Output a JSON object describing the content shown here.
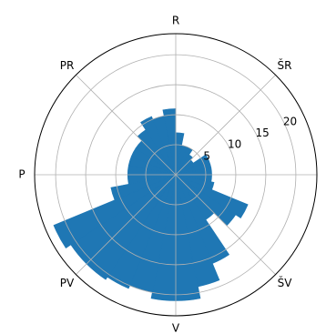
{
  "chart_data": {
    "type": "polar-bar",
    "theta_zero": "top",
    "theta_direction": "clockwise",
    "direction_labels": [
      "R",
      "ŠR",
      "",
      "ŠV",
      "V",
      "PV",
      "P",
      "PR"
    ],
    "r_ticks": [
      5,
      10,
      15,
      20
    ],
    "r_tick_labels": [
      "5",
      "10",
      "15",
      "20"
    ],
    "r_max": 23.5,
    "grid": true,
    "bar_color": "#1f77b4",
    "bins": [
      {
        "start_deg": 0,
        "end_deg": 11.25,
        "value": 7
      },
      {
        "start_deg": 11.25,
        "end_deg": 22.5,
        "value": 5
      },
      {
        "start_deg": 22.5,
        "end_deg": 33.75,
        "value": 5
      },
      {
        "start_deg": 33.75,
        "end_deg": 45,
        "value": 4
      },
      {
        "start_deg": 45,
        "end_deg": 56.25,
        "value": 3.5
      },
      {
        "start_deg": 56.25,
        "end_deg": 67.5,
        "value": 6
      },
      {
        "start_deg": 67.5,
        "end_deg": 78.75,
        "value": 6
      },
      {
        "start_deg": 78.75,
        "end_deg": 90,
        "value": 6
      },
      {
        "start_deg": 90,
        "end_deg": 101.25,
        "value": 6
      },
      {
        "start_deg": 101.25,
        "end_deg": 112.5,
        "value": 6.5
      },
      {
        "start_deg": 112.5,
        "end_deg": 123.75,
        "value": 13
      },
      {
        "start_deg": 123.75,
        "end_deg": 135,
        "value": 12
      },
      {
        "start_deg": 135,
        "end_deg": 146.25,
        "value": 9
      },
      {
        "start_deg": 146.25,
        "end_deg": 157.5,
        "value": 16
      },
      {
        "start_deg": 157.5,
        "end_deg": 168.75,
        "value": 19
      },
      {
        "start_deg": 168.75,
        "end_deg": 180,
        "value": 21
      },
      {
        "start_deg": 180,
        "end_deg": 191.25,
        "value": 21
      },
      {
        "start_deg": 191.25,
        "end_deg": 202.5,
        "value": 20
      },
      {
        "start_deg": 202.5,
        "end_deg": 213.75,
        "value": 20.5
      },
      {
        "start_deg": 213.75,
        "end_deg": 225,
        "value": 21
      },
      {
        "start_deg": 225,
        "end_deg": 236.25,
        "value": 21
      },
      {
        "start_deg": 236.25,
        "end_deg": 247.5,
        "value": 22
      },
      {
        "start_deg": 247.5,
        "end_deg": 258.75,
        "value": 11
      },
      {
        "start_deg": 258.75,
        "end_deg": 270,
        "value": 8
      },
      {
        "start_deg": 270,
        "end_deg": 281.25,
        "value": 8
      },
      {
        "start_deg": 281.25,
        "end_deg": 292.5,
        "value": 8
      },
      {
        "start_deg": 292.5,
        "end_deg": 303.75,
        "value": 8
      },
      {
        "start_deg": 303.75,
        "end_deg": 315,
        "value": 8
      },
      {
        "start_deg": 315,
        "end_deg": 326.25,
        "value": 9
      },
      {
        "start_deg": 326.25,
        "end_deg": 337.5,
        "value": 10.5
      },
      {
        "start_deg": 337.5,
        "end_deg": 348.75,
        "value": 10
      },
      {
        "start_deg": 348.75,
        "end_deg": 360,
        "value": 11
      }
    ]
  }
}
